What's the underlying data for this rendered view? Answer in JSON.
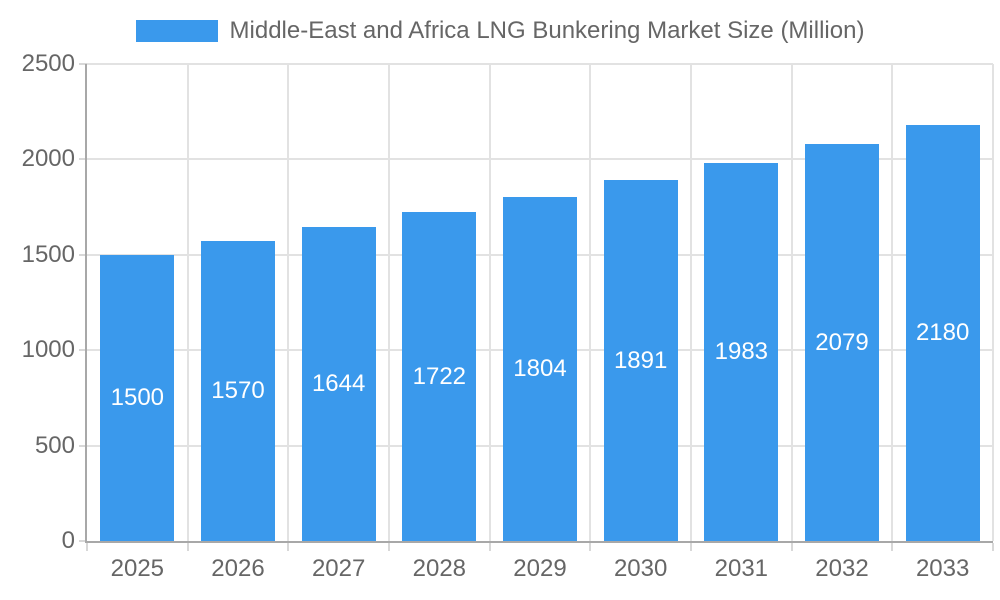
{
  "chart_data": {
    "type": "bar",
    "title": "Middle-East and Africa LNG Bunkering Market Size (Million)",
    "legend_position": "top",
    "categories": [
      "2025",
      "2026",
      "2027",
      "2028",
      "2029",
      "2030",
      "2031",
      "2032",
      "2033"
    ],
    "values": [
      1500,
      1570,
      1644,
      1722,
      1804,
      1891,
      1983,
      2079,
      2180
    ],
    "xlabel": "",
    "ylabel": "",
    "ylim": [
      0,
      2500
    ],
    "yticks": [
      0,
      500,
      1000,
      1500,
      2000,
      2500
    ],
    "grid": true,
    "value_labels": "inside-center",
    "colors": {
      "bar": "#3A99EC",
      "bar_label_text": "#FFFFFF",
      "axis_text": "#666666",
      "grid_line": "#E2E2E2",
      "tick_mark": "#D8D8D8",
      "axis_line": "#A8A8A8",
      "background": "#FFFFFF"
    }
  }
}
